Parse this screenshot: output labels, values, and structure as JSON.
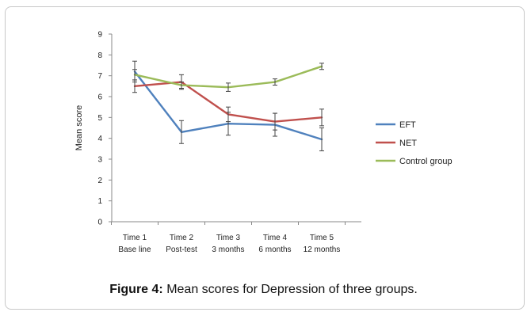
{
  "caption": {
    "label": "Figure 4:",
    "text": "Mean scores for Depression of three groups."
  },
  "chart_data": {
    "type": "line",
    "title": "",
    "xlabel": "",
    "ylabel": "Mean score",
    "ylim": [
      0,
      9
    ],
    "yticks": [
      0,
      1,
      2,
      3,
      4,
      5,
      6,
      7,
      8,
      9
    ],
    "grid": false,
    "legend_position": "right",
    "categories": [
      {
        "line1": "Time 1",
        "line2": "Base line"
      },
      {
        "line1": "Time 2",
        "line2": "Post-test"
      },
      {
        "line1": "Time 3",
        "line2": "3 months"
      },
      {
        "line1": "Time 4",
        "line2": "6 months"
      },
      {
        "line1": "Time 5",
        "line2": "12 months"
      }
    ],
    "series": [
      {
        "name": "EFT",
        "color": "#4f81bd",
        "values": [
          7.2,
          4.3,
          4.7,
          4.65,
          3.95
        ],
        "error_low": [
          6.7,
          3.75,
          4.15,
          4.1,
          3.4
        ],
        "error_high": [
          7.7,
          4.85,
          5.25,
          5.2,
          4.5
        ]
      },
      {
        "name": "NET",
        "color": "#c0504d",
        "values": [
          6.5,
          6.7,
          5.15,
          4.8,
          5.0
        ],
        "error_low": [
          6.2,
          6.35,
          4.8,
          4.4,
          4.6
        ],
        "error_high": [
          6.8,
          7.05,
          5.5,
          5.2,
          5.4
        ]
      },
      {
        "name": "Control group",
        "color": "#9bbb59",
        "values": [
          7.05,
          6.55,
          6.45,
          6.7,
          7.45
        ],
        "error_low": [
          6.8,
          6.4,
          6.25,
          6.55,
          7.3
        ],
        "error_high": [
          7.3,
          6.7,
          6.65,
          6.85,
          7.6
        ]
      }
    ]
  }
}
